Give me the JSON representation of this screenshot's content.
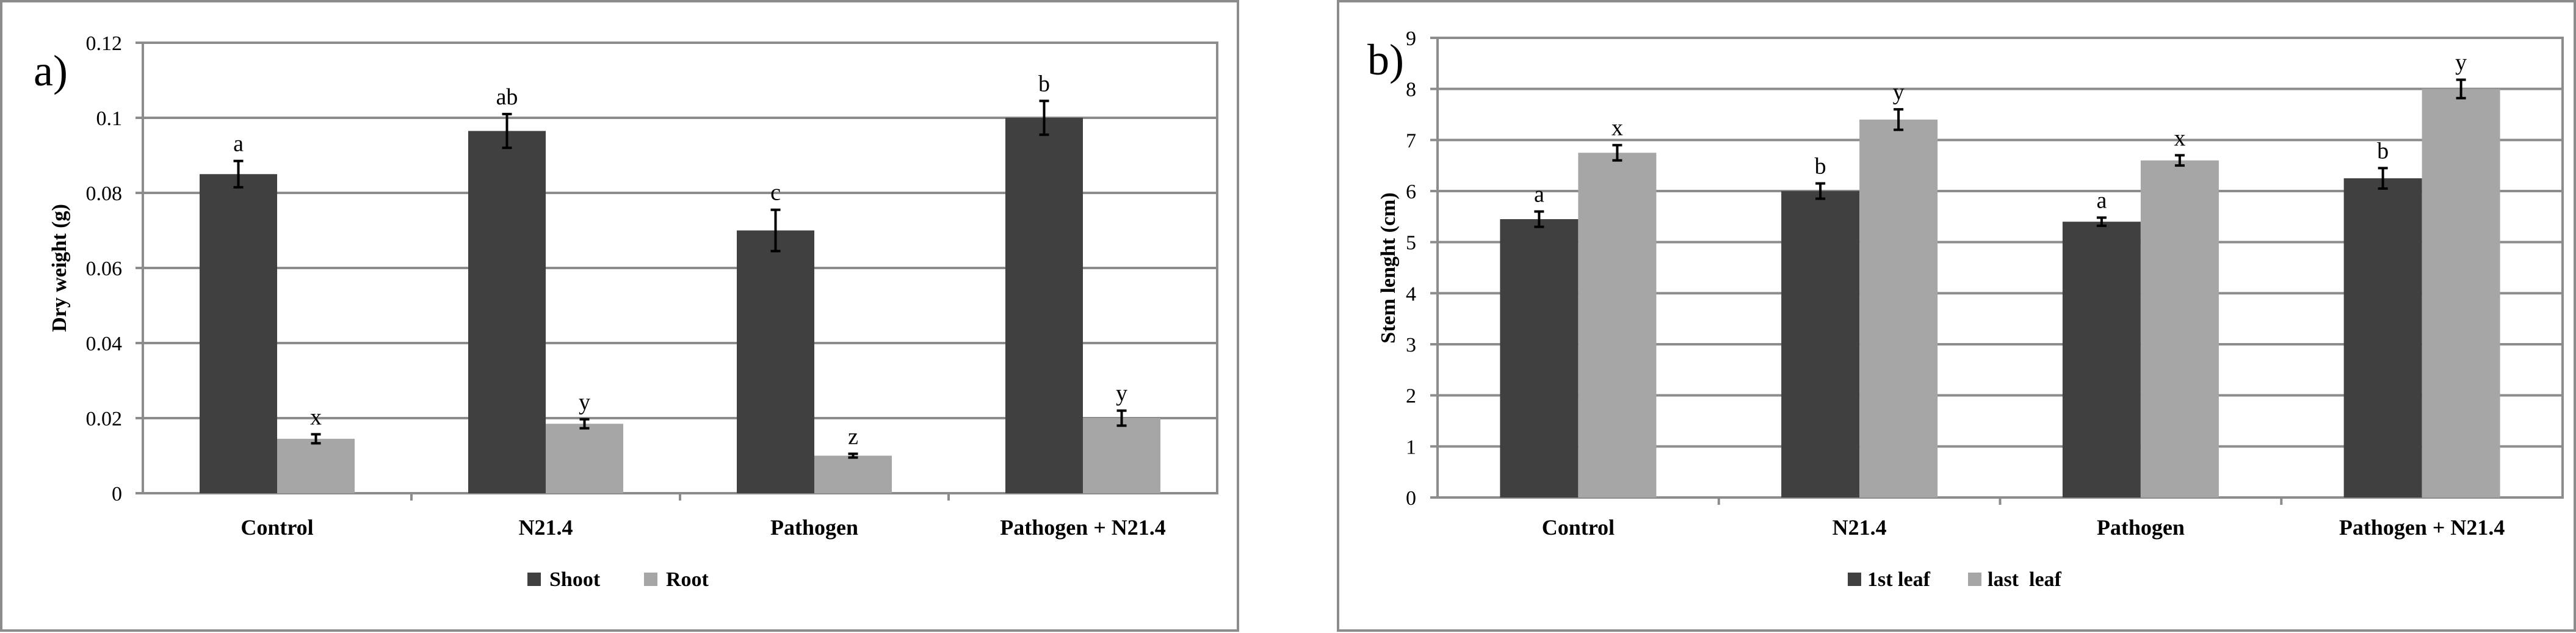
{
  "chart_data": [
    {
      "type": "bar",
      "panel_label": "a)",
      "title": "",
      "xlabel": "",
      "ylabel": "Dry weight (g)",
      "categories": [
        "Control",
        "N21.4",
        "Pathogen",
        "Pathogen + N21.4"
      ],
      "ylim": [
        0,
        0.12
      ],
      "yticks": [
        0,
        0.02,
        0.04,
        0.06,
        0.08,
        0.1,
        0.12
      ],
      "ytick_labels": [
        "0",
        "0.02",
        "0.04",
        "0.06",
        "0.08",
        "0.1",
        "0.12"
      ],
      "grid": true,
      "legend_position": "bottom",
      "series": [
        {
          "name": "Shoot",
          "color": "#404040",
          "values": [
            0.085,
            0.0965,
            0.07,
            0.1
          ],
          "errors": [
            0.0035,
            0.0045,
            0.0055,
            0.0045
          ],
          "letters": [
            "a",
            "ab",
            "c",
            "b"
          ]
        },
        {
          "name": "Root",
          "color": "#a6a6a6",
          "values": [
            0.0145,
            0.0185,
            0.01,
            0.02
          ],
          "errors": [
            0.0012,
            0.0012,
            0.0005,
            0.002
          ],
          "letters": [
            "x",
            "y",
            "z",
            "y"
          ]
        }
      ]
    },
    {
      "type": "bar",
      "panel_label": "b)",
      "title": "",
      "xlabel": "",
      "ylabel": "Stem lenght (cm)",
      "categories": [
        "Control",
        "N21.4",
        "Pathogen",
        "Pathogen + N21.4"
      ],
      "ylim": [
        0,
        9
      ],
      "yticks": [
        0,
        1,
        2,
        3,
        4,
        5,
        6,
        7,
        8,
        9
      ],
      "ytick_labels": [
        "0",
        "1",
        "2",
        "3",
        "4",
        "5",
        "6",
        "7",
        "8",
        "9"
      ],
      "grid": true,
      "legend_position": "bottom",
      "series": [
        {
          "name": "1st leaf",
          "color": "#404040",
          "values": [
            5.45,
            6.0,
            5.4,
            6.25
          ],
          "errors": [
            0.15,
            0.15,
            0.08,
            0.2
          ],
          "letters": [
            "a",
            "b",
            "a",
            "b"
          ]
        },
        {
          "name": "last  leaf",
          "color": "#a6a6a6",
          "values": [
            6.75,
            7.4,
            6.6,
            8.0
          ],
          "errors": [
            0.15,
            0.2,
            0.1,
            0.18
          ],
          "letters": [
            "x",
            "y",
            "x",
            "y"
          ]
        }
      ]
    }
  ]
}
